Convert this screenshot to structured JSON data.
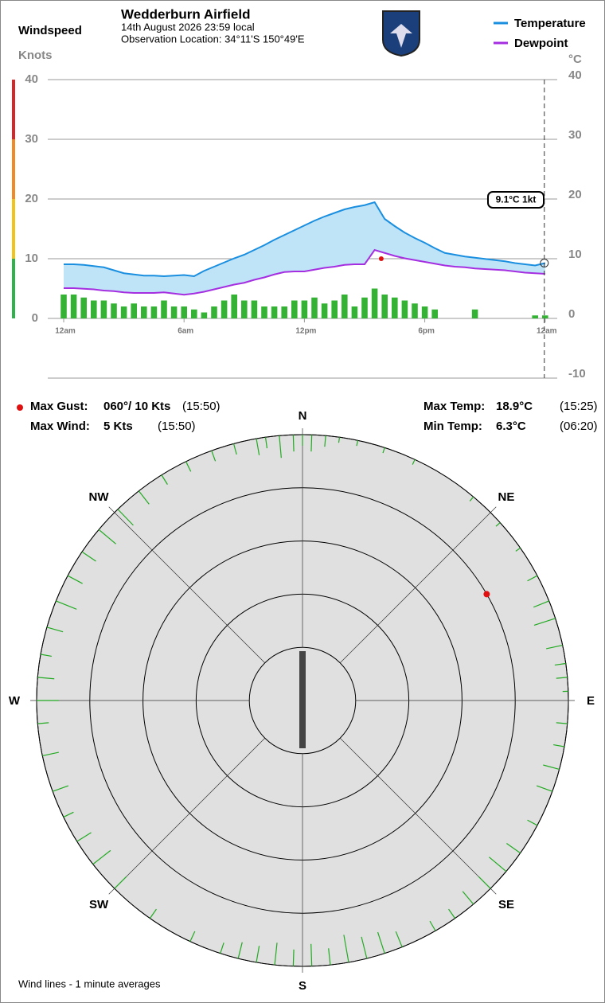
{
  "header": {
    "title": "Wedderburn Airfield",
    "datetime": "14th August 2026  23:59 local",
    "location": "Observation Location: 34°11'S 150°49'E"
  },
  "stats": {
    "gust_label": "Max Gust:",
    "gust_value": "060°/ 10 Kts",
    "gust_time": "(15:50)",
    "wind_label": "Max Wind:",
    "wind_value": "5 Kts",
    "wind_time": "(15:50)",
    "max_temp_label": "Max Temp:",
    "max_temp_value": "18.9°C",
    "max_temp_time": "(15:25)",
    "min_temp_label": "Min Temp:",
    "min_temp_value": "6.3°C",
    "min_temp_time": "(06:20)"
  },
  "chart_data": [
    {
      "type": "line",
      "ylabel": "Windspeed",
      "yunits": "Knots",
      "y2units": "°C",
      "x": [
        0,
        0.5,
        1,
        1.5,
        2,
        2.5,
        3,
        3.5,
        4,
        4.5,
        5,
        5.5,
        6,
        6.5,
        7,
        7.5,
        8,
        8.5,
        9,
        9.5,
        10,
        10.5,
        11,
        11.5,
        12,
        12.5,
        13,
        13.5,
        14,
        14.5,
        15,
        15.5,
        16,
        16.5,
        17,
        17.5,
        18,
        18.5,
        19,
        19.5,
        20,
        20.5,
        21,
        21.5,
        22,
        22.5,
        23,
        23.5,
        24
      ],
      "xlim": [
        0,
        24
      ],
      "xticks": [
        {
          "value": 0,
          "label": "12am"
        },
        {
          "value": 6,
          "label": "6am"
        },
        {
          "value": 12,
          "label": "12pm"
        },
        {
          "value": 18,
          "label": "6pm"
        },
        {
          "value": 24,
          "label": "12am"
        }
      ],
      "ylim": [
        0,
        40
      ],
      "yticks": [
        0,
        10,
        20,
        30,
        40
      ],
      "y2lim": [
        -10,
        40
      ],
      "y2ticks": [
        -10,
        0,
        10,
        20,
        30,
        40
      ],
      "grid": true,
      "legend": "top-right",
      "fill_between": "#bfe3f7",
      "bands": {
        "edges": [
          0,
          10,
          20,
          30,
          40
        ],
        "colors": [
          "#2db34a",
          "#f0c419",
          "#f08a24",
          "#d62728"
        ]
      },
      "series": [
        {
          "name": "Temperature",
          "color": "#1a8fe0",
          "axis": "y2",
          "values": [
            8.4,
            8.4,
            8.3,
            8.1,
            7.9,
            7.4,
            6.9,
            6.7,
            6.5,
            6.5,
            6.4,
            6.5,
            6.6,
            6.4,
            7.3,
            8.0,
            8.7,
            9.4,
            10.0,
            10.8,
            11.6,
            12.5,
            13.3,
            14.1,
            14.9,
            15.7,
            16.4,
            17.0,
            17.6,
            18.0,
            18.3,
            18.8,
            16.0,
            14.8,
            13.7,
            12.8,
            12.0,
            11.1,
            10.3,
            10.0,
            9.7,
            9.5,
            9.3,
            9.1,
            8.9,
            8.6,
            8.4,
            8.2,
            8.6
          ]
        },
        {
          "name": "Dewpoint",
          "color": "#a52fe0",
          "axis": "y2",
          "values": [
            4.4,
            4.4,
            4.3,
            4.2,
            4.0,
            3.9,
            3.7,
            3.6,
            3.6,
            3.6,
            3.7,
            3.5,
            3.3,
            3.5,
            3.8,
            4.2,
            4.6,
            5.0,
            5.3,
            5.8,
            6.2,
            6.7,
            7.1,
            7.2,
            7.2,
            7.5,
            7.8,
            8.0,
            8.3,
            8.4,
            8.4,
            10.8,
            10.3,
            9.8,
            9.4,
            9.1,
            8.8,
            8.5,
            8.2,
            8.0,
            7.9,
            7.7,
            7.6,
            7.5,
            7.4,
            7.2,
            7.0,
            6.9,
            6.8
          ]
        },
        {
          "type": "bar",
          "color": "#33b233",
          "values": [
            4,
            4,
            3.5,
            3,
            3,
            2.5,
            2,
            2.5,
            2,
            2,
            3,
            2,
            2,
            1.5,
            1,
            2,
            3,
            4,
            3,
            3,
            2,
            2,
            2,
            3,
            3,
            3.5,
            2.5,
            3,
            4,
            2,
            3.5,
            5,
            4,
            3.5,
            3,
            2.5,
            2,
            1.5,
            0,
            0,
            0,
            1.5,
            0,
            0,
            0,
            0,
            0,
            0.5,
            0.5
          ]
        }
      ],
      "annotation": "9.1°C  1kt",
      "gust": {
        "x": 15.83,
        "value": 10,
        "color": "#e01010"
      }
    },
    {
      "type": "polar",
      "rlim": [
        0,
        12.5
      ],
      "rticks": [
        2.5,
        5,
        7.5,
        10,
        12.5
      ],
      "direction_labels": [
        "N",
        "NE",
        "E",
        "SE",
        "S",
        "SW",
        "W",
        "NW"
      ],
      "color": "#22aa22",
      "wind_lines": {
        "directions": [
          350,
          352,
          355,
          358,
          0,
          2,
          5,
          8,
          12,
          18,
          25,
          40,
          48,
          55,
          62,
          68,
          72,
          78,
          82,
          85,
          88,
          95,
          100,
          105,
          110,
          118,
          125,
          130,
          135,
          140,
          145,
          150,
          158,
          162,
          166,
          170,
          174,
          178,
          182,
          186,
          190,
          194,
          198,
          205,
          215,
          225,
          232,
          238,
          244,
          250,
          258,
          265,
          270,
          275,
          280,
          286,
          292,
          298,
          304,
          310,
          316,
          322,
          328,
          334,
          340,
          345
        ],
        "speeds": [
          3,
          2,
          4,
          3,
          2,
          3,
          2,
          1,
          1,
          1,
          1,
          1,
          1,
          1,
          2,
          3,
          4,
          3,
          2,
          2,
          1,
          2,
          2,
          3,
          3,
          2,
          3,
          4,
          3,
          3,
          2,
          2,
          3,
          4,
          4,
          5,
          3,
          4,
          3,
          4,
          3,
          3,
          2,
          2,
          2,
          3,
          4,
          3,
          2,
          3,
          3,
          2,
          4,
          3,
          2,
          3,
          4,
          3,
          3,
          4,
          4,
          3,
          2,
          2,
          2,
          2
        ]
      },
      "gust": {
        "direction": 60,
        "speed": 10
      },
      "footnote": "Wind lines - 1 minute averages"
    }
  ]
}
